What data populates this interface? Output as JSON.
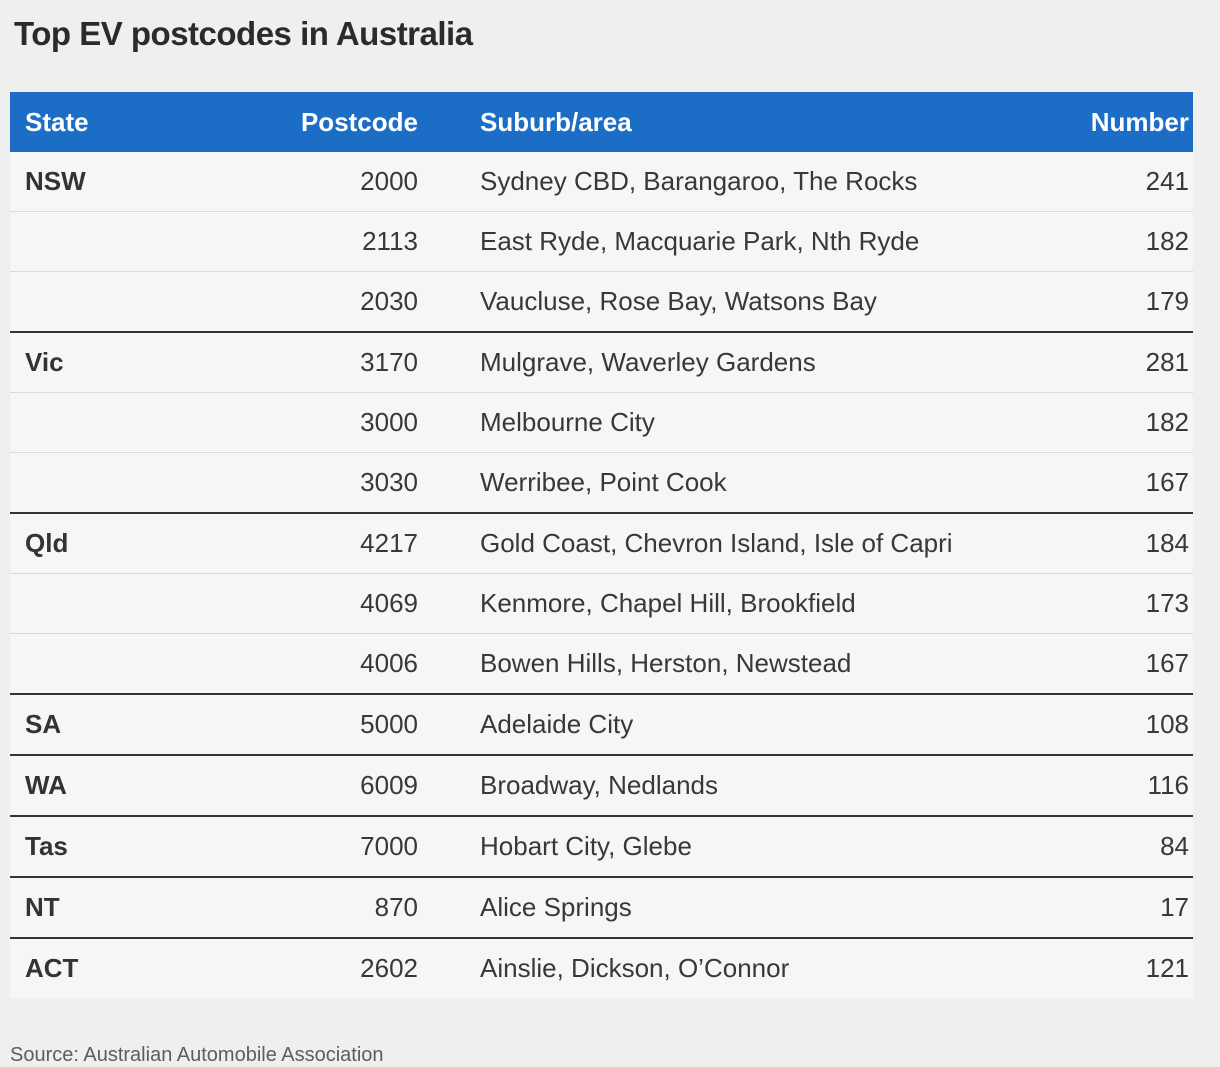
{
  "title": "Top EV postcodes in Australia",
  "source": "Source: Australian Automobile Association",
  "colors": {
    "page_bg": "#f0efef",
    "row_bg": "#f7f6f6",
    "header_bg": "#1b6dc6",
    "header_text": "#ffffff",
    "title_text": "#2b2b2b",
    "body_text": "#383838",
    "state_text": "#333333",
    "divider_light": "#dadada",
    "divider_dark": "#333333",
    "source_text": "#5d5d5d"
  },
  "chart_data": {
    "type": "table",
    "title": "Top EV postcodes in Australia",
    "columns": [
      "State",
      "Postcode",
      "Suburb/area",
      "Number"
    ],
    "rows": [
      {
        "state": "NSW",
        "postcode": "2000",
        "suburb": "Sydney CBD, Barangaroo, The Rocks",
        "number": 241,
        "group_start": true
      },
      {
        "state": "",
        "postcode": "2113",
        "suburb": "East Ryde, Macquarie Park, Nth Ryde",
        "number": 182,
        "group_start": false
      },
      {
        "state": "",
        "postcode": "2030",
        "suburb": "Vaucluse, Rose Bay, Watsons Bay",
        "number": 179,
        "group_start": false
      },
      {
        "state": "Vic",
        "postcode": "3170",
        "suburb": "Mulgrave, Waverley Gardens",
        "number": 281,
        "group_start": true
      },
      {
        "state": "",
        "postcode": "3000",
        "suburb": "Melbourne City",
        "number": 182,
        "group_start": false
      },
      {
        "state": "",
        "postcode": "3030",
        "suburb": "Werribee, Point Cook",
        "number": 167,
        "group_start": false
      },
      {
        "state": "Qld",
        "postcode": "4217",
        "suburb": "Gold Coast, Chevron Island, Isle of Capri",
        "number": 184,
        "group_start": true
      },
      {
        "state": "",
        "postcode": "4069",
        "suburb": "Kenmore, Chapel Hill, Brookfield",
        "number": 173,
        "group_start": false
      },
      {
        "state": "",
        "postcode": "4006",
        "suburb": "Bowen Hills, Herston, Newstead",
        "number": 167,
        "group_start": false
      },
      {
        "state": "SA",
        "postcode": "5000",
        "suburb": "Adelaide City",
        "number": 108,
        "group_start": true
      },
      {
        "state": "WA",
        "postcode": "6009",
        "suburb": "Broadway, Nedlands",
        "number": 116,
        "group_start": true
      },
      {
        "state": "Tas",
        "postcode": "7000",
        "suburb": "Hobart City, Glebe",
        "number": 84,
        "group_start": true
      },
      {
        "state": "NT",
        "postcode": "870",
        "suburb": "Alice Springs",
        "number": 17,
        "group_start": true
      },
      {
        "state": "ACT",
        "postcode": "2602",
        "suburb": "Ainslie, Dickson, O’Connor",
        "number": 121,
        "group_start": true
      }
    ],
    "source": "Source: Australian Automobile Association",
    "layout": {
      "legend": "none",
      "grid": "row-dividers",
      "number_alignment": "right",
      "postcode_alignment": "right"
    }
  }
}
